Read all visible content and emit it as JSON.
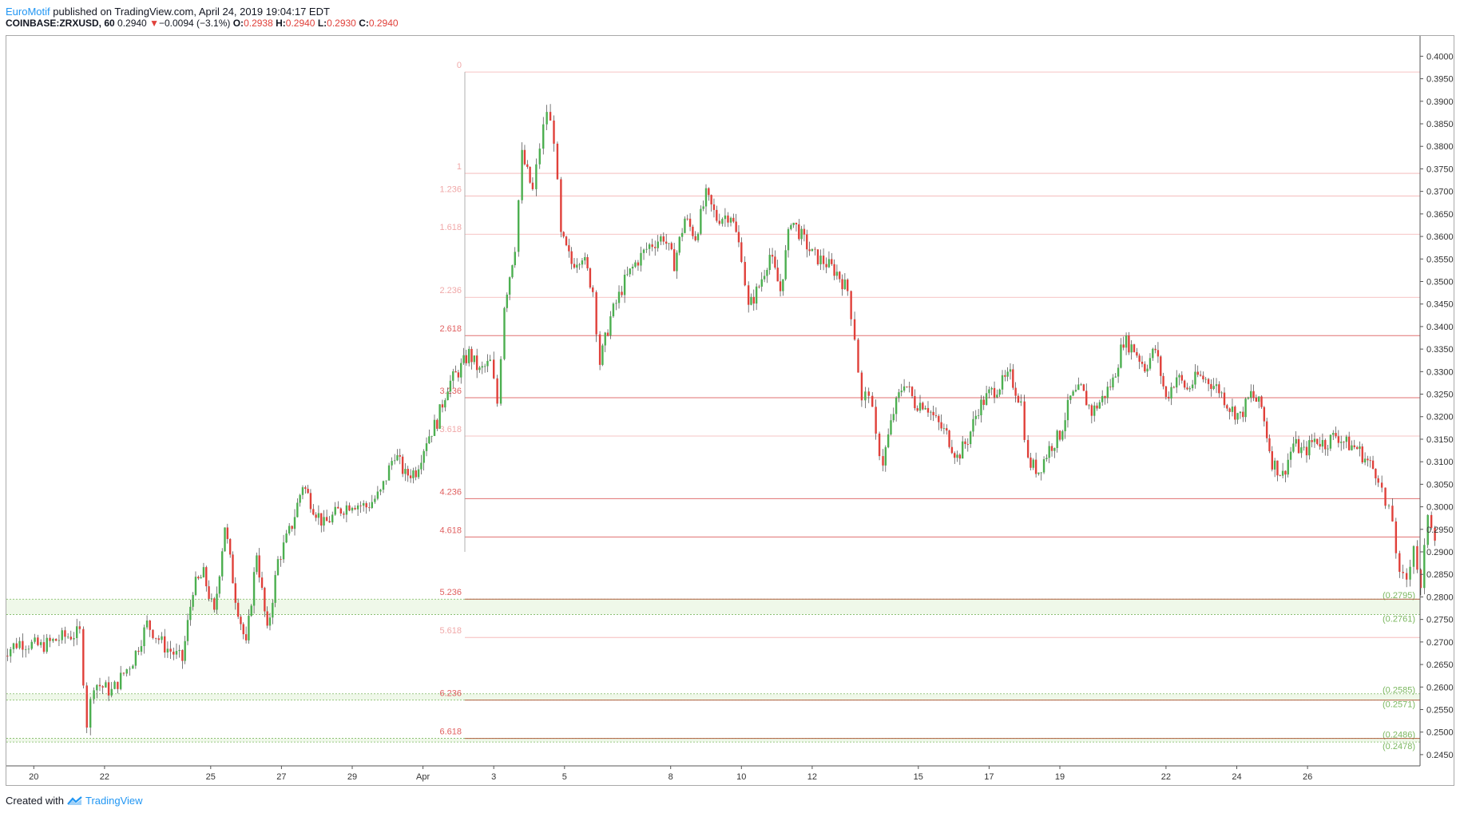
{
  "header": {
    "author": "EuroMotif",
    "published_text": " published on TradingView.com, April 24, 2019 19:04:17 EDT",
    "symbol": "COINBASE:ZRXUSD, 60",
    "last": "0.2940",
    "change": "−0.0094 (−3.1%)",
    "o_label": "O:",
    "o_value": "0.2938",
    "h_label": "H:",
    "h_value": "0.2940",
    "l_label": "L:",
    "l_value": "0.2930",
    "c_label": "C:",
    "c_value": "0.2940"
  },
  "footer": {
    "created_with": "Created with",
    "brand": "TradingView"
  },
  "colors": {
    "up": "#4caf50",
    "down": "#e0403a",
    "fib": "#f3b0b0",
    "fib_strong": "#e07070",
    "zone": "#e8f5e0",
    "zone_line": "#7cb860"
  },
  "chart_data": {
    "type": "candlestick",
    "ylim": [
      0.2425,
      0.4045
    ],
    "x_ticks": [
      "20",
      "22",
      "25",
      "27",
      "29",
      "Apr",
      "3",
      "5",
      "8",
      "10",
      "12",
      "15",
      "17",
      "19",
      "22",
      "24",
      "26"
    ],
    "y_ticks": [
      "0.4000",
      "0.3950",
      "0.3900",
      "0.3850",
      "0.3800",
      "0.3750",
      "0.3700",
      "0.3650",
      "0.3600",
      "0.3550",
      "0.3500",
      "0.3450",
      "0.3400",
      "0.3350",
      "0.3300",
      "0.3250",
      "0.3200",
      "0.3150",
      "0.3100",
      "0.3050",
      "0.3000",
      "0.2950",
      "0.2900",
      "0.2850",
      "0.2800",
      "0.2750",
      "0.2700",
      "0.2650",
      "0.2600",
      "0.2550",
      "0.2500",
      "0.2450"
    ],
    "fib_levels": [
      {
        "label": "0",
        "price": 0.3965
      },
      {
        "label": "1",
        "price": 0.374
      },
      {
        "label": "1.236",
        "price": 0.369
      },
      {
        "label": "1.618",
        "price": 0.3605
      },
      {
        "label": "2.236",
        "price": 0.3465
      },
      {
        "label": "2.618",
        "price": 0.338
      },
      {
        "label": "3.236",
        "price": 0.3242
      },
      {
        "label": "3.618",
        "price": 0.3157
      },
      {
        "label": "4.236",
        "price": 0.3018
      },
      {
        "label": "4.618",
        "price": 0.2933
      },
      {
        "label": "5.236",
        "price": 0.2795
      },
      {
        "label": "5.618",
        "price": 0.271
      },
      {
        "label": "6.236",
        "price": 0.2571
      },
      {
        "label": "6.618",
        "price": 0.2486
      }
    ],
    "zones": [
      {
        "top": 0.2795,
        "bottom": 0.2761,
        "top_label": "(0.2795)",
        "bottom_label": "(0.2761)"
      },
      {
        "top": 0.2585,
        "bottom": 0.2571,
        "top_label": "(0.2585)",
        "bottom_label": "(0.2571)"
      },
      {
        "top": 0.2486,
        "bottom": 0.2478,
        "top_label": "(0.2486)",
        "bottom_label": "(0.2478)"
      }
    ],
    "price_path": [
      [
        19.0,
        0.267
      ],
      [
        19.6,
        0.27
      ],
      [
        20.2,
        0.269
      ],
      [
        20.8,
        0.271
      ],
      [
        21.3,
        0.272
      ],
      [
        21.5,
        0.252
      ],
      [
        21.7,
        0.261
      ],
      [
        22.2,
        0.259
      ],
      [
        22.8,
        0.266
      ],
      [
        23.2,
        0.274
      ],
      [
        23.7,
        0.269
      ],
      [
        24.2,
        0.266
      ],
      [
        24.5,
        0.282
      ],
      [
        24.8,
        0.285
      ],
      [
        25.1,
        0.276
      ],
      [
        25.4,
        0.296
      ],
      [
        25.7,
        0.28
      ],
      [
        26.0,
        0.269
      ],
      [
        26.3,
        0.29
      ],
      [
        26.6,
        0.272
      ],
      [
        26.9,
        0.288
      ],
      [
        27.3,
        0.296
      ],
      [
        27.6,
        0.305
      ],
      [
        27.9,
        0.3
      ],
      [
        28.2,
        0.296
      ],
      [
        28.6,
        0.299
      ],
      [
        29.0,
        0.301
      ],
      [
        29.4,
        0.3
      ],
      [
        29.8,
        0.303
      ],
      [
        30.2,
        0.312
      ],
      [
        30.5,
        0.307
      ],
      [
        30.8,
        0.308
      ],
      [
        31.1,
        0.315
      ],
      [
        31.4,
        0.319
      ],
      [
        31.7,
        0.327
      ],
      [
        32.0,
        0.33
      ],
      [
        32.3,
        0.334
      ],
      [
        32.6,
        0.33
      ],
      [
        32.9,
        0.332
      ],
      [
        33.1,
        0.323
      ],
      [
        33.3,
        0.345
      ],
      [
        33.6,
        0.358
      ],
      [
        33.8,
        0.378
      ],
      [
        34.1,
        0.37
      ],
      [
        34.3,
        0.38
      ],
      [
        34.5,
        0.388
      ],
      [
        34.7,
        0.382
      ],
      [
        34.9,
        0.36
      ],
      [
        35.2,
        0.354
      ],
      [
        35.5,
        0.356
      ],
      [
        35.8,
        0.348
      ],
      [
        36.0,
        0.332
      ],
      [
        36.3,
        0.342
      ],
      [
        36.7,
        0.35
      ],
      [
        37.0,
        0.354
      ],
      [
        37.4,
        0.358
      ],
      [
        37.8,
        0.36
      ],
      [
        38.1,
        0.354
      ],
      [
        38.4,
        0.364
      ],
      [
        38.7,
        0.36
      ],
      [
        39.0,
        0.369
      ],
      [
        39.3,
        0.364
      ],
      [
        39.7,
        0.365
      ],
      [
        40.0,
        0.356
      ],
      [
        40.2,
        0.344
      ],
      [
        40.5,
        0.349
      ],
      [
        40.8,
        0.356
      ],
      [
        41.1,
        0.348
      ],
      [
        41.4,
        0.364
      ],
      [
        41.7,
        0.36
      ],
      [
        42.0,
        0.356
      ],
      [
        42.4,
        0.354
      ],
      [
        42.7,
        0.352
      ],
      [
        43.0,
        0.348
      ],
      [
        43.2,
        0.338
      ],
      [
        43.4,
        0.323
      ],
      [
        43.6,
        0.326
      ],
      [
        43.8,
        0.315
      ],
      [
        44.0,
        0.31
      ],
      [
        44.3,
        0.321
      ],
      [
        44.6,
        0.328
      ],
      [
        44.9,
        0.323
      ],
      [
        45.2,
        0.323
      ],
      [
        45.5,
        0.319
      ],
      [
        45.8,
        0.316
      ],
      [
        46.1,
        0.311
      ],
      [
        46.4,
        0.315
      ],
      [
        46.7,
        0.322
      ],
      [
        47.0,
        0.325
      ],
      [
        47.3,
        0.327
      ],
      [
        47.6,
        0.329
      ],
      [
        47.9,
        0.323
      ],
      [
        48.1,
        0.31
      ],
      [
        48.4,
        0.308
      ],
      [
        48.7,
        0.313
      ],
      [
        49.0,
        0.316
      ],
      [
        49.3,
        0.324
      ],
      [
        49.6,
        0.326
      ],
      [
        49.9,
        0.321
      ],
      [
        50.2,
        0.324
      ],
      [
        50.5,
        0.328
      ],
      [
        50.8,
        0.337
      ],
      [
        51.1,
        0.335
      ],
      [
        51.4,
        0.331
      ],
      [
        51.7,
        0.335
      ],
      [
        52.0,
        0.324
      ],
      [
        52.3,
        0.329
      ],
      [
        52.6,
        0.326
      ],
      [
        52.9,
        0.329
      ],
      [
        53.2,
        0.328
      ],
      [
        53.5,
        0.326
      ],
      [
        53.8,
        0.322
      ],
      [
        54.1,
        0.32
      ],
      [
        54.4,
        0.325
      ],
      [
        54.7,
        0.322
      ],
      [
        55.0,
        0.31
      ],
      [
        55.3,
        0.307
      ],
      [
        55.6,
        0.314
      ],
      [
        55.9,
        0.312
      ],
      [
        56.2,
        0.315
      ],
      [
        56.5,
        0.314
      ],
      [
        56.8,
        0.316
      ],
      [
        57.1,
        0.314
      ],
      [
        57.4,
        0.313
      ],
      [
        57.7,
        0.31
      ],
      [
        58.0,
        0.307
      ],
      [
        58.2,
        0.3
      ],
      [
        58.4,
        0.297
      ],
      [
        58.6,
        0.284
      ],
      [
        58.8,
        0.284
      ],
      [
        59.0,
        0.292
      ],
      [
        59.2,
        0.281
      ],
      [
        59.4,
        0.299
      ],
      [
        59.6,
        0.294
      ]
    ]
  }
}
